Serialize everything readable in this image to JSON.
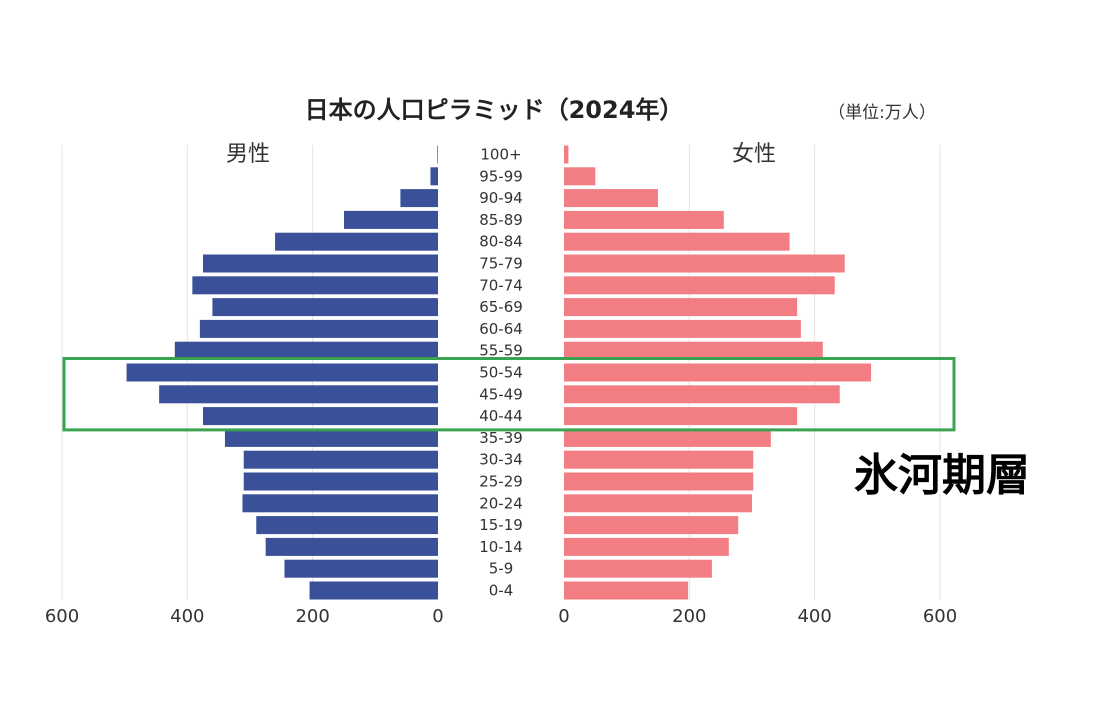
{
  "chart_data": {
    "type": "bar",
    "title": "日本の人口ピラミッド（2024年）",
    "unit_note": "（単位:万人）",
    "left_label": "男性",
    "right_label": "女性",
    "categories": [
      "100+",
      "95-99",
      "90-94",
      "85-89",
      "80-84",
      "75-79",
      "70-74",
      "65-69",
      "60-64",
      "55-59",
      "50-54",
      "45-49",
      "40-44",
      "35-39",
      "30-34",
      "25-29",
      "20-24",
      "15-19",
      "10-14",
      "5-9",
      "0-4"
    ],
    "series": [
      {
        "name": "男性",
        "color": "#3a5199",
        "values": [
          1,
          12,
          60,
          150,
          260,
          375,
          392,
          360,
          380,
          420,
          497,
          445,
          375,
          340,
          310,
          310,
          312,
          290,
          275,
          245,
          205
        ]
      },
      {
        "name": "女性",
        "color": "#f27d82",
        "values": [
          7,
          50,
          150,
          255,
          360,
          448,
          432,
          372,
          378,
          413,
          490,
          440,
          372,
          330,
          302,
          302,
          300,
          278,
          263,
          236,
          198
        ]
      }
    ],
    "xlim": [
      0,
      600
    ],
    "ticks": [
      600,
      400,
      200,
      0
    ],
    "ticks_right": [
      0,
      200,
      400,
      600
    ],
    "highlight": {
      "label": "氷河期層",
      "categories": [
        "50-54",
        "45-49",
        "40-44"
      ],
      "color": "#3aa34f"
    }
  }
}
